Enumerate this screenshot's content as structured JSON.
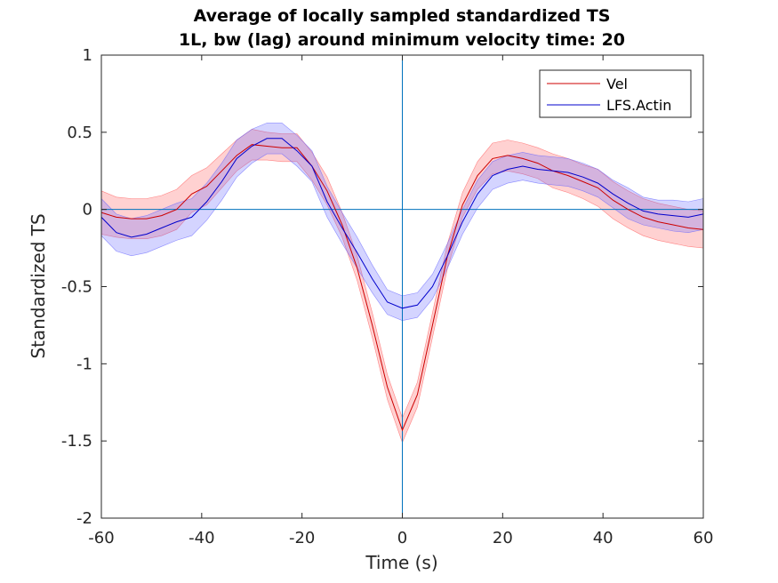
{
  "chart_data": {
    "type": "line",
    "title_line1": "Average of locally sampled standardized TS",
    "title_line2": "1L, bw (lag) around minimum velocity time: 20",
    "xlabel": "Time (s)",
    "ylabel": "Standardized TS",
    "xlim": [
      -60,
      60
    ],
    "ylim": [
      -2,
      1
    ],
    "xticks": [
      -60,
      -40,
      -20,
      0,
      20,
      40,
      60
    ],
    "xtick_labels": [
      "-60",
      "-40",
      "-20",
      "0",
      "20",
      "40",
      "60"
    ],
    "yticks": [
      1,
      0.5,
      0,
      -0.5,
      -1,
      -1.5,
      -2
    ],
    "ytick_labels": [
      "1",
      "0.5",
      "0",
      "-0.5",
      "-1",
      "-1.5",
      "-2"
    ],
    "grid": false,
    "legend_position": "top-right",
    "reference_lines": {
      "horizontal_y": 0,
      "vertical_x": 0,
      "color": "#0072BD"
    },
    "x": [
      -60,
      -57,
      -54,
      -51,
      -48,
      -45,
      -42,
      -39,
      -36,
      -33,
      -30,
      -27,
      -24,
      -21,
      -18,
      -15,
      -12,
      -9,
      -6,
      -3,
      0,
      3,
      6,
      9,
      12,
      15,
      18,
      21,
      24,
      27,
      30,
      33,
      36,
      39,
      42,
      45,
      48,
      51,
      54,
      57,
      60
    ],
    "series": [
      {
        "name": "Vel",
        "color": "#cc0000",
        "band_color": "#ff5a5a",
        "values": [
          -0.02,
          -0.05,
          -0.06,
          -0.06,
          -0.04,
          0.0,
          0.1,
          0.15,
          0.25,
          0.35,
          0.42,
          0.41,
          0.4,
          0.4,
          0.28,
          0.12,
          -0.1,
          -0.38,
          -0.75,
          -1.15,
          -1.43,
          -1.2,
          -0.75,
          -0.3,
          0.03,
          0.22,
          0.33,
          0.35,
          0.33,
          0.3,
          0.25,
          0.22,
          0.18,
          0.14,
          0.06,
          0.0,
          -0.05,
          -0.08,
          -0.1,
          -0.12,
          -0.13
        ],
        "upper": [
          0.12,
          0.08,
          0.07,
          0.07,
          0.09,
          0.13,
          0.22,
          0.27,
          0.36,
          0.45,
          0.52,
          0.5,
          0.49,
          0.49,
          0.37,
          0.21,
          -0.02,
          -0.3,
          -0.67,
          -1.07,
          -1.35,
          -1.12,
          -0.67,
          -0.22,
          0.11,
          0.31,
          0.43,
          0.45,
          0.43,
          0.4,
          0.36,
          0.33,
          0.29,
          0.26,
          0.18,
          0.12,
          0.07,
          0.04,
          0.02,
          0.0,
          -0.01
        ],
        "lower": [
          -0.16,
          -0.18,
          -0.19,
          -0.19,
          -0.17,
          -0.13,
          -0.02,
          0.03,
          0.14,
          0.25,
          0.32,
          0.32,
          0.31,
          0.31,
          0.19,
          0.03,
          -0.18,
          -0.46,
          -0.83,
          -1.23,
          -1.51,
          -1.28,
          -0.83,
          -0.38,
          -0.05,
          0.13,
          0.23,
          0.25,
          0.23,
          0.2,
          0.14,
          0.11,
          0.07,
          0.02,
          -0.06,
          -0.12,
          -0.17,
          -0.2,
          -0.22,
          -0.24,
          -0.25
        ]
      },
      {
        "name": "LFS.Actin",
        "color": "#0000cc",
        "band_color": "#6464ff",
        "values": [
          -0.05,
          -0.15,
          -0.18,
          -0.16,
          -0.12,
          -0.08,
          -0.05,
          0.05,
          0.18,
          0.33,
          0.41,
          0.46,
          0.46,
          0.38,
          0.28,
          0.05,
          -0.12,
          -0.28,
          -0.45,
          -0.6,
          -0.64,
          -0.62,
          -0.5,
          -0.3,
          -0.08,
          0.1,
          0.22,
          0.26,
          0.28,
          0.26,
          0.25,
          0.24,
          0.21,
          0.17,
          0.1,
          0.04,
          -0.01,
          -0.03,
          -0.04,
          -0.05,
          -0.03
        ],
        "upper": [
          0.07,
          -0.03,
          -0.06,
          -0.04,
          0.0,
          0.04,
          0.07,
          0.17,
          0.3,
          0.45,
          0.52,
          0.56,
          0.56,
          0.48,
          0.38,
          0.15,
          -0.02,
          -0.18,
          -0.36,
          -0.52,
          -0.56,
          -0.54,
          -0.42,
          -0.22,
          0.0,
          0.19,
          0.31,
          0.35,
          0.37,
          0.35,
          0.34,
          0.33,
          0.3,
          0.26,
          0.19,
          0.14,
          0.08,
          0.06,
          0.06,
          0.05,
          0.07
        ],
        "lower": [
          -0.17,
          -0.27,
          -0.3,
          -0.28,
          -0.24,
          -0.2,
          -0.17,
          -0.07,
          0.06,
          0.21,
          0.3,
          0.36,
          0.36,
          0.28,
          0.18,
          -0.05,
          -0.22,
          -0.38,
          -0.54,
          -0.68,
          -0.72,
          -0.7,
          -0.58,
          -0.38,
          -0.16,
          0.01,
          0.13,
          0.17,
          0.19,
          0.17,
          0.16,
          0.15,
          0.12,
          0.08,
          0.01,
          -0.06,
          -0.1,
          -0.12,
          -0.14,
          -0.15,
          -0.13
        ]
      }
    ]
  }
}
